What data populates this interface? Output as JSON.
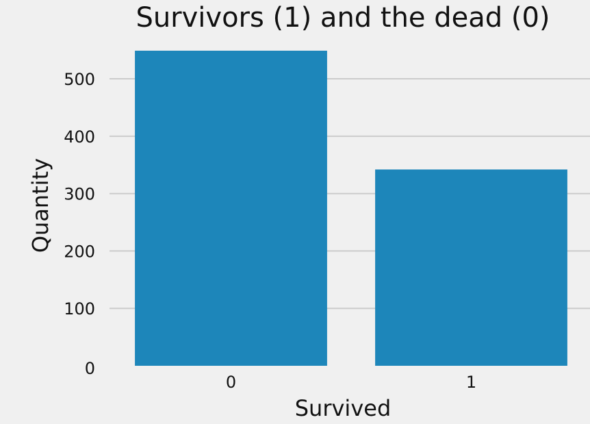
{
  "chart_data": {
    "type": "bar",
    "title": "Survivors (1) and the dead (0)",
    "xlabel": "Survived",
    "ylabel": "Quantity",
    "categories": [
      "0",
      "1"
    ],
    "values": [
      549,
      342
    ],
    "ylim": [
      0,
      549
    ],
    "yticks": [
      0,
      100,
      200,
      300,
      400,
      500
    ],
    "grid": true,
    "legend": "none",
    "bar_color": "#1d86ba",
    "background_color": "#f0f0f0",
    "grid_color": "#cbcbcb"
  }
}
